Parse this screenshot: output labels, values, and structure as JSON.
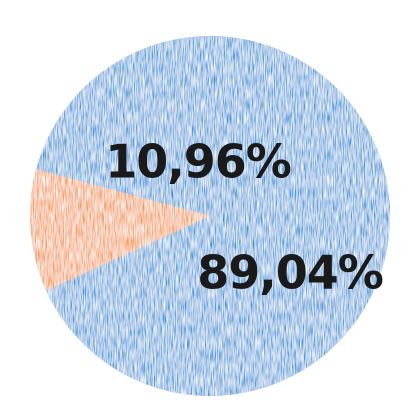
{
  "chart_data": {
    "type": "pie",
    "slices": [
      {
        "value": 89.04,
        "label": "89,04%",
        "color": "#2f95d8"
      },
      {
        "value": 10.96,
        "label": "10,96%",
        "color": "#f5923e"
      }
    ]
  }
}
